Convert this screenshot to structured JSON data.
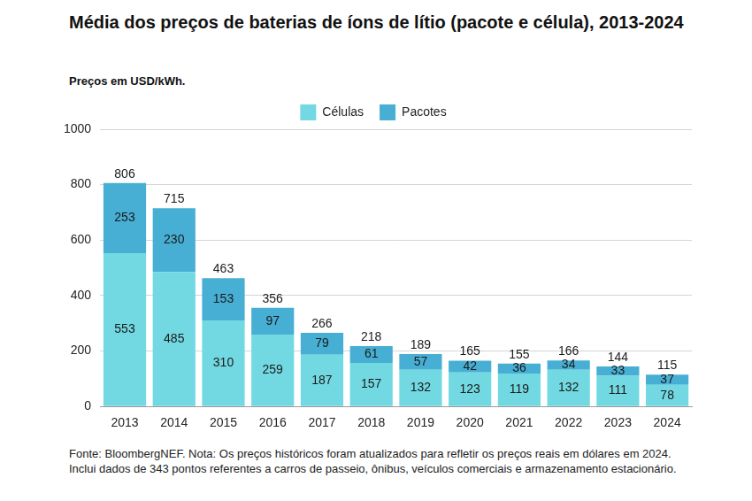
{
  "chart_data": {
    "type": "bar",
    "title": "Média dos preços de baterias de íons de lítio (pacote e célula), 2013-2024",
    "subtitle": "Preços em USD/kWh.",
    "note": "Fonte: BloombergNEF. Nota: Os preços históricos foram atualizados para refletir os preços reais em dólares em 2024. Inclui dados de 343 pontos referentes a carros de passeio, ônibus, veículos comerciais e armazenamento estacionário.",
    "categories": [
      "2013",
      "2014",
      "2015",
      "2016",
      "2017",
      "2018",
      "2019",
      "2020",
      "2021",
      "2022",
      "2023",
      "2024"
    ],
    "series": [
      {
        "name": "Células",
        "color": "#72d9e2",
        "values": [
          553,
          485,
          310,
          259,
          187,
          157,
          132,
          123,
          119,
          132,
          111,
          78
        ]
      },
      {
        "name": "Pacotes",
        "color": "#47afd3",
        "values": [
          253,
          230,
          153,
          97,
          79,
          61,
          57,
          42,
          36,
          34,
          33,
          37
        ]
      }
    ],
    "totals": [
      806,
      715,
      463,
      356,
      266,
      218,
      189,
      165,
      155,
      166,
      144,
      115
    ],
    "ylim": [
      0,
      1000
    ],
    "yticks": [
      0,
      200,
      400,
      600,
      800,
      1000
    ],
    "stacked": true,
    "grid": true,
    "legend": "top",
    "data_labels": true
  }
}
